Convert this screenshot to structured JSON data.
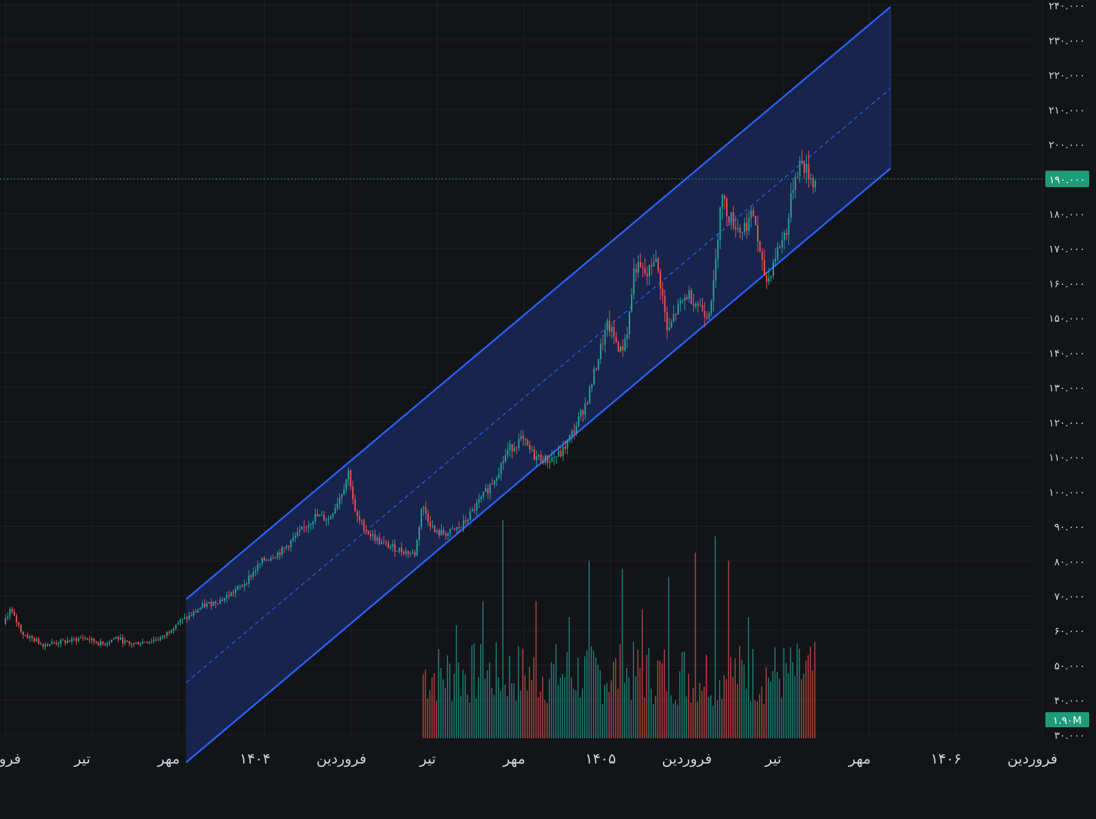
{
  "chart_data": {
    "type": "candlestick",
    "y_axis": {
      "ticks": [
        30000,
        40000,
        50000,
        60000,
        70000,
        80000,
        90000,
        100000,
        110000,
        120000,
        130000,
        140000,
        150000,
        160000,
        170000,
        180000,
        190000,
        200000,
        210000,
        220000,
        230000,
        240000
      ],
      "tick_labels": [
        "۳۰.۰۰۰",
        "۴۰.۰۰۰",
        "۵۰.۰۰۰",
        "۶۰.۰۰۰",
        "۷۰.۰۰۰",
        "۸۰.۰۰۰",
        "۹۰.۰۰۰",
        "۱۰۰.۰۰۰",
        "۱۱۰.۰۰۰",
        "۱۲۰.۰۰۰",
        "۱۳۰.۰۰۰",
        "۱۴۰.۰۰۰",
        "۱۵۰.۰۰۰",
        "۱۶۰.۰۰۰",
        "۱۷۰.۰۰۰",
        "۱۸۰.۰۰۰",
        "۱۹۰.۰۰۰",
        "۲۰۰.۰۰۰",
        "۲۱۰.۰۰۰",
        "۲۲۰.۰۰۰",
        "۲۳۰.۰۰۰",
        "۲۴۰.۰۰۰"
      ],
      "range": [
        29000,
        241500
      ],
      "side": "right"
    },
    "x_axis": {
      "labels": [
        "فروردین",
        "تیر",
        "مهر",
        "۱۴۰۴",
        "فروردین",
        "تیر",
        "مهر",
        "۱۴۰۵",
        "فروردین",
        "تیر",
        "مهر",
        "۱۴۰۶",
        "فروردین"
      ],
      "label_index": [
        0,
        13,
        26,
        39,
        52,
        65,
        78,
        91,
        104,
        117,
        130,
        143,
        156
      ]
    },
    "last_price": 190000,
    "last_price_label": "۱۹۰.۰۰۰",
    "volume_label": "۱.۹۰M",
    "channel": {
      "upper": [
        [
          28,
          69000
        ],
        [
          134,
          239500
        ]
      ],
      "lower": [
        [
          28,
          22000
        ],
        [
          134,
          193000
        ]
      ],
      "middle": [
        [
          28,
          45000
        ],
        [
          134,
          216000
        ]
      ]
    },
    "price_path": [
      [
        0,
        62000
      ],
      [
        1,
        66000
      ],
      [
        3,
        59000
      ],
      [
        6,
        56000
      ],
      [
        10,
        57000
      ],
      [
        12,
        58000
      ],
      [
        15,
        56000
      ],
      [
        17,
        58000
      ],
      [
        19,
        56000
      ],
      [
        22,
        57000
      ],
      [
        24,
        58000
      ],
      [
        26,
        62000
      ],
      [
        28,
        64000
      ],
      [
        30,
        67000
      ],
      [
        33,
        69000
      ],
      [
        36,
        73000
      ],
      [
        39,
        80000
      ],
      [
        42,
        83000
      ],
      [
        45,
        89000
      ],
      [
        47,
        93000
      ],
      [
        49,
        92000
      ],
      [
        51,
        100000
      ],
      [
        52,
        106000
      ],
      [
        53,
        93000
      ],
      [
        55,
        88000
      ],
      [
        57,
        85000
      ],
      [
        60,
        83000
      ],
      [
        62,
        82000
      ],
      [
        63,
        96000
      ],
      [
        65,
        88000
      ],
      [
        67,
        88000
      ],
      [
        69,
        90000
      ],
      [
        72,
        98000
      ],
      [
        74,
        104000
      ],
      [
        76,
        112000
      ],
      [
        78,
        115000
      ],
      [
        80,
        110000
      ],
      [
        82,
        109000
      ],
      [
        84,
        111000
      ],
      [
        86,
        118000
      ],
      [
        88,
        127000
      ],
      [
        90,
        142000
      ],
      [
        91,
        148000
      ],
      [
        93,
        140000
      ],
      [
        94,
        147000
      ],
      [
        95,
        165000
      ],
      [
        97,
        162000
      ],
      [
        98,
        168000
      ],
      [
        99,
        159000
      ],
      [
        100,
        145000
      ],
      [
        101,
        151000
      ],
      [
        103,
        157000
      ],
      [
        104,
        155000
      ],
      [
        106,
        151000
      ],
      [
        107,
        160000
      ],
      [
        108,
        186000
      ],
      [
        109,
        180000
      ],
      [
        111,
        175000
      ],
      [
        113,
        180000
      ],
      [
        114,
        166000
      ],
      [
        115,
        160000
      ],
      [
        116,
        167000
      ],
      [
        118,
        176000
      ],
      [
        119,
        190000
      ],
      [
        120,
        195000
      ],
      [
        121,
        192000
      ],
      [
        122,
        189000
      ]
    ],
    "volume_range": [
      0,
      28000000
    ],
    "volume_spikes": [
      [
        68,
        14000000
      ],
      [
        72,
        17000000
      ],
      [
        75,
        27000000
      ],
      [
        80,
        17000000
      ],
      [
        85,
        15000000
      ],
      [
        88,
        22000000
      ],
      [
        93,
        21000000
      ],
      [
        96,
        16000000
      ],
      [
        100,
        20000000
      ],
      [
        104,
        23000000
      ],
      [
        107,
        25000000
      ],
      [
        109,
        22000000
      ],
      [
        112,
        15000000
      ]
    ],
    "volume_start_index": 63
  },
  "colors": {
    "background": "#131418",
    "grid": "#1f2126",
    "up": "#26a69a",
    "down": "#ef5350",
    "channel_fill": "#1b2a5e",
    "channel_line": "#2962ff",
    "last_price": "#1e9c78",
    "label": "#d1d4dc"
  }
}
